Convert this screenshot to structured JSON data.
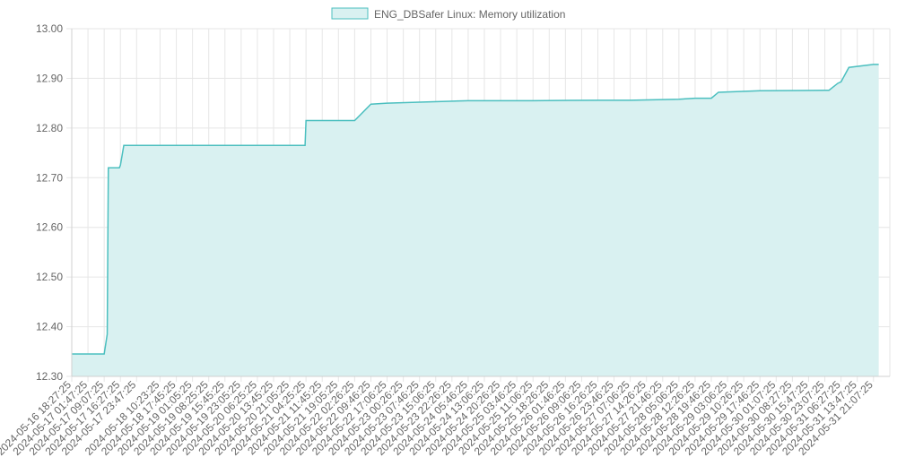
{
  "chart_data": {
    "type": "area",
    "title": "",
    "xlabel": "",
    "ylabel": "",
    "ylim": [
      12.3,
      13.0
    ],
    "grid": true,
    "legend_placement": "top-center",
    "colors": {
      "line": "#4bbfbf",
      "fill": "#d9f1f1",
      "grid": "#e6e6e6",
      "text": "#666666"
    },
    "y_ticks": [
      "12.30",
      "12.40",
      "12.50",
      "12.60",
      "12.70",
      "12.80",
      "12.90",
      "13.00"
    ],
    "x_tick_labels": [
      "2024-05-16 18:27:25",
      "2024-05-17 01:47:25",
      "2024-05-17 09:07:25",
      "2024-05-17 16:27:25",
      "2024-05-17 23:47:25",
      "2024-05-18 10:23:25",
      "2024-05-18 17:45:25",
      "2024-05-19 01:05:25",
      "2024-05-19 08:25:25",
      "2024-05-19 15:45:25",
      "2024-05-19 23:05:25",
      "2024-05-20 06:25:25",
      "2024-05-20 13:45:25",
      "2024-05-20 21:05:25",
      "2024-05-21 04:25:25",
      "2024-05-21 11:45:25",
      "2024-05-21 19:05:25",
      "2024-05-22 02:26:25",
      "2024-05-22 09:46:25",
      "2024-05-22 17:06:25",
      "2024-05-23 00:26:25",
      "2024-05-23 07:46:25",
      "2024-05-23 15:06:25",
      "2024-05-23 22:26:25",
      "2024-05-24 05:46:25",
      "2024-05-24 13:06:25",
      "2024-05-24 20:26:25",
      "2024-05-25 03:46:25",
      "2024-05-25 11:06:25",
      "2024-05-25 18:26:25",
      "2024-05-26 01:46:25",
      "2024-05-26 09:06:25",
      "2024-05-26 16:26:25",
      "2024-05-26 23:46:25",
      "2024-05-27 07:06:25",
      "2024-05-27 14:26:25",
      "2024-05-27 21:46:25",
      "2024-05-28 05:06:25",
      "2024-05-28 12:26:25",
      "2024-05-28 19:46:25",
      "2024-05-29 03:06:25",
      "2024-05-29 10:26:25",
      "2024-05-29 17:46:25",
      "2024-05-30 01:07:25",
      "2024-05-30 08:27:25",
      "2024-05-30 15:47:25",
      "2024-05-30 23:07:25",
      "2024-05-31 06:27:25",
      "2024-05-31 13:47:25",
      "2024-05-31 21:07:25"
    ],
    "series": [
      {
        "name": "ENG_DBSafer Linux: Memory utilization",
        "x": [
          "2024-05-16 18:27:25",
          "2024-05-17 09:00:00",
          "2024-05-17 09:07:25",
          "2024-05-17 10:30:00",
          "2024-05-17 11:00:00",
          "2024-05-17 16:00:00",
          "2024-05-17 16:27:25",
          "2024-05-17 18:00:00",
          "2024-05-18 10:23:25",
          "2024-05-19 08:25:25",
          "2024-05-20 06:25:25",
          "2024-05-20 13:45:25",
          "2024-05-20 21:05:25",
          "2024-05-21 04:00:00",
          "2024-05-21 04:25:25",
          "2024-05-21 19:05:25",
          "2024-05-22 02:26:25",
          "2024-05-22 09:46:25",
          "2024-05-22 17:06:25",
          "2024-05-23 07:46:25",
          "2024-05-24 05:46:25",
          "2024-05-25 11:06:25",
          "2024-05-26 16:26:25",
          "2024-05-27 07:06:25",
          "2024-05-28 05:06:25",
          "2024-05-28 12:26:25",
          "2024-05-28 19:46:25",
          "2024-05-28 23:00:00",
          "2024-05-29 17:46:25",
          "2024-05-30 23:07:25",
          "2024-05-31 01:00:00",
          "2024-05-31 05:00:00",
          "2024-05-31 06:27:25",
          "2024-05-31 10:00:00",
          "2024-05-31 21:07:25",
          "2024-05-31 23:30:00"
        ],
        "values": [
          12.345,
          12.345,
          12.345,
          12.385,
          12.72,
          12.72,
          12.725,
          12.765,
          12.765,
          12.765,
          12.765,
          12.765,
          12.765,
          12.765,
          12.815,
          12.815,
          12.815,
          12.848,
          12.85,
          12.852,
          12.855,
          12.855,
          12.856,
          12.856,
          12.858,
          12.86,
          12.86,
          12.872,
          12.875,
          12.876,
          12.876,
          12.89,
          12.893,
          12.922,
          12.928,
          12.928
        ]
      }
    ]
  }
}
